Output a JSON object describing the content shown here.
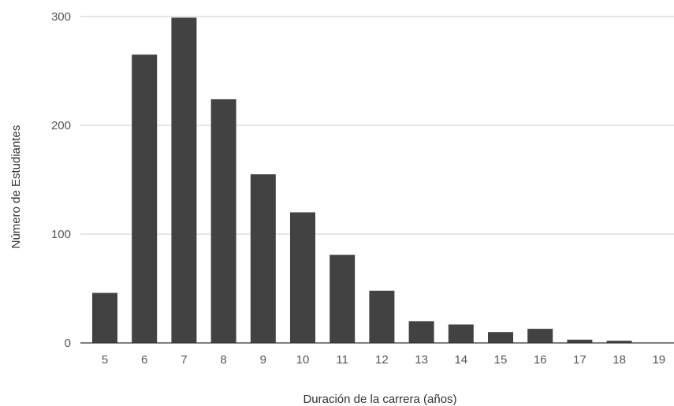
{
  "chart_data": {
    "type": "bar",
    "categories": [
      "5",
      "6",
      "7",
      "8",
      "9",
      "10",
      "11",
      "12",
      "13",
      "14",
      "15",
      "16",
      "17",
      "18",
      "19"
    ],
    "values": [
      46,
      265,
      299,
      224,
      155,
      120,
      81,
      48,
      20,
      17,
      10,
      13,
      3,
      2,
      0
    ],
    "xlabel": "Duración de la carrera (años)",
    "ylabel": "Número de Estudiantes",
    "ylim": [
      0,
      300
    ],
    "yticks": [
      0,
      100,
      200,
      300
    ],
    "grid": true,
    "colors": {
      "bar": "#424242",
      "grid": "#cccccc",
      "axis": "#333333"
    }
  }
}
